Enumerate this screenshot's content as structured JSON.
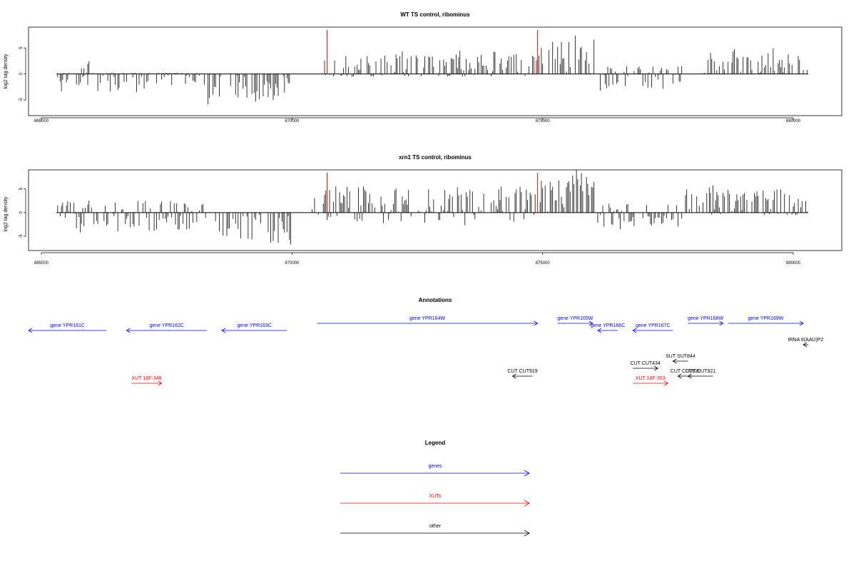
{
  "chart_data": [
    {
      "type": "bar",
      "title": "WT TS control, ribominus",
      "ylabel": "log2 tag density",
      "xlabel": "",
      "xlim": [
        864500,
        881000
      ],
      "ylim": [
        -8,
        9
      ],
      "xticks": [
        "865000",
        "870000",
        "875000",
        "880000"
      ],
      "yticks": [
        "-5",
        "0",
        "5"
      ],
      "grid": false,
      "highlight_positions": [
        870700,
        874900
      ],
      "segments": [
        {
          "start": 865300,
          "end": 868300,
          "min": -3.5,
          "max": 0.2,
          "bias": -0.5
        },
        {
          "start": 865800,
          "end": 866000,
          "min": -1.5,
          "max": 2.5,
          "bias": 0.3
        },
        {
          "start": 868300,
          "end": 870000,
          "min": -6.5,
          "max": 0,
          "bias": -3
        },
        {
          "start": 870600,
          "end": 874900,
          "min": -0.5,
          "max": 4.5,
          "bias": 1.5
        },
        {
          "start": 874900,
          "end": 876100,
          "min": 0,
          "max": 7.5,
          "bias": 3
        },
        {
          "start": 876100,
          "end": 877800,
          "min": -4,
          "max": 1.5,
          "bias": -0.3
        },
        {
          "start": 878200,
          "end": 880300,
          "min": 0,
          "max": 5,
          "bias": 1.5
        }
      ]
    },
    {
      "type": "bar",
      "title": "xrn1 TS control, ribominus",
      "ylabel": "log2 tag density",
      "xlabel": "",
      "xlim": [
        864500,
        881000
      ],
      "ylim": [
        -8,
        9
      ],
      "xticks": [
        "865000",
        "870000",
        "875000",
        "880000"
      ],
      "yticks": [
        "-5",
        "0",
        "5"
      ],
      "grid": false,
      "highlight_positions": [
        870700,
        874900
      ],
      "segments": [
        {
          "start": 865300,
          "end": 868300,
          "min": -4.5,
          "max": 2.5,
          "bias": -1
        },
        {
          "start": 868300,
          "end": 870000,
          "min": -7.5,
          "max": 0,
          "bias": -3.5
        },
        {
          "start": 870400,
          "end": 874900,
          "min": -3,
          "max": 5.5,
          "bias": 2
        },
        {
          "start": 874900,
          "end": 876100,
          "min": 0,
          "max": 9,
          "bias": 4
        },
        {
          "start": 876100,
          "end": 877800,
          "min": -4,
          "max": 2,
          "bias": -0.8
        },
        {
          "start": 877800,
          "end": 880300,
          "min": -0.5,
          "max": 6,
          "bias": 2
        }
      ]
    }
  ],
  "annotations": {
    "title": "Annotations",
    "colors": {
      "gene": "#0000ff",
      "xut": "#ff0000",
      "other": "#000000"
    },
    "features": [
      {
        "label": "gene YPR161C",
        "kind": "gene",
        "start": 864500,
        "end": 866300,
        "strand": "-",
        "row": 1
      },
      {
        "label": "gene YPR162C",
        "kind": "gene",
        "start": 866700,
        "end": 868300,
        "strand": "-",
        "row": 1
      },
      {
        "label": "gene YPR163C",
        "kind": "gene",
        "start": 868600,
        "end": 869900,
        "strand": "-",
        "row": 1
      },
      {
        "label": "gene YPR164W",
        "kind": "gene",
        "start": 870500,
        "end": 874900,
        "strand": "+",
        "row": 0
      },
      {
        "label": "gene YPR165W",
        "kind": "gene",
        "start": 875300,
        "end": 876000,
        "strand": "+",
        "row": 0
      },
      {
        "label": "gene YPR166C",
        "kind": "gene",
        "start": 876100,
        "end": 876500,
        "strand": "-",
        "row": 1
      },
      {
        "label": "gene YPR167C",
        "kind": "gene",
        "start": 876800,
        "end": 877600,
        "strand": "-",
        "row": 1
      },
      {
        "label": "gene YPR168W",
        "kind": "gene",
        "start": 877900,
        "end": 878600,
        "strand": "+",
        "row": 0
      },
      {
        "label": "gene YPR169W",
        "kind": "gene",
        "start": 878700,
        "end": 880200,
        "strand": "+",
        "row": 0
      },
      {
        "label": "tRNA tI(AAU)P2",
        "kind": "other",
        "start": 880200,
        "end": 880300,
        "strand": "-",
        "row": 2
      },
      {
        "label": "SUT SUT844",
        "kind": "other",
        "start": 877600,
        "end": 877900,
        "strand": "-",
        "row": 3
      },
      {
        "label": "CUT CUT434",
        "kind": "other",
        "start": 876800,
        "end": 877300,
        "strand": "+",
        "row": 4
      },
      {
        "label": "CUT CUT919",
        "kind": "other",
        "start": 874400,
        "end": 874800,
        "strand": "-",
        "row": 5
      },
      {
        "label": "CUT CUT920",
        "kind": "other",
        "start": 877700,
        "end": 878000,
        "strand": "-",
        "row": 5
      },
      {
        "label": "CUT CUT921",
        "kind": "other",
        "start": 877900,
        "end": 878400,
        "strand": "-",
        "row": 5
      },
      {
        "label": "XUT 16F-348",
        "kind": "xut",
        "start": 866800,
        "end": 867400,
        "strand": "+",
        "row": 6
      },
      {
        "label": "XUT 16F-353",
        "kind": "xut",
        "start": 876800,
        "end": 877500,
        "strand": "+",
        "row": 6
      }
    ]
  },
  "legend": {
    "title": "Legend",
    "items": [
      {
        "label": "genes",
        "color": "#0000ff"
      },
      {
        "label": "XUTs",
        "color": "#ff0000"
      },
      {
        "label": "other",
        "color": "#000000"
      }
    ]
  }
}
